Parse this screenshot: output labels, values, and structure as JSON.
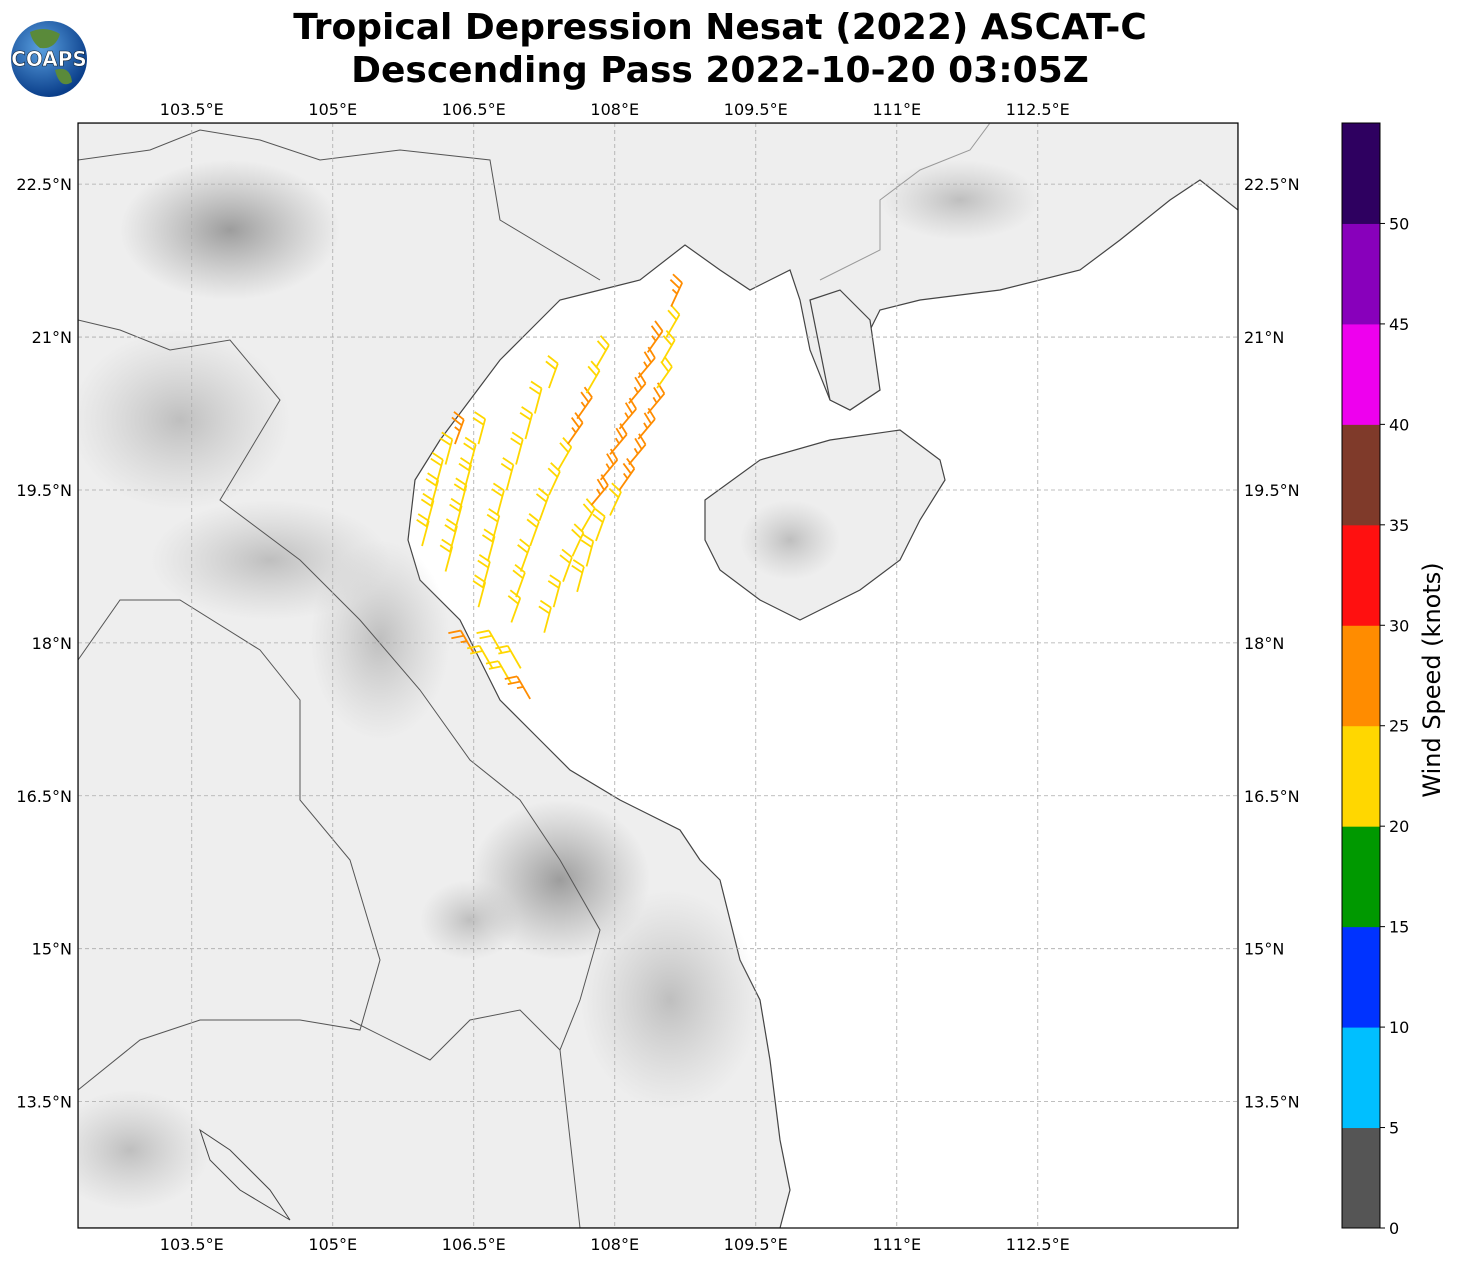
{
  "title_line1": "Tropical Depression Nesat (2022) ASCAT-C",
  "title_line2": "Descending Pass 2022-10-20 03:05Z",
  "logo_text": "COAPS",
  "map": {
    "lon_range": [
      102.29,
      114.63
    ],
    "lat_range": [
      12.26,
      23.1
    ],
    "lon_ticks": [
      103.5,
      105,
      106.5,
      108,
      109.5,
      111,
      112.5
    ],
    "lon_tick_labels": [
      "103.5°E",
      "105°E",
      "106.5°E",
      "108°E",
      "109.5°E",
      "111°E",
      "112.5°E"
    ],
    "lat_ticks": [
      22.5,
      21,
      19.5,
      18,
      16.5,
      15,
      13.5
    ],
    "lat_tick_labels": [
      "22.5°N",
      "21°N",
      "19.5°N",
      "18°N",
      "16.5°N",
      "15°N",
      "13.5°N"
    ],
    "gridlines": true
  },
  "colorbar": {
    "label": "Wind Speed (knots)",
    "bounds": [
      0,
      5,
      10,
      15,
      20,
      25,
      30,
      35,
      40,
      45,
      50,
      55
    ],
    "colors": [
      "#555555",
      "#00bfff",
      "#0033ff",
      "#009900",
      "#ffd700",
      "#ff8c00",
      "#ff1010",
      "#7f3a2a",
      "#ee00ee",
      "#8800bb",
      "#2e0060"
    ],
    "tick_labels": [
      "0",
      "5",
      "10",
      "15",
      "20",
      "25",
      "30",
      "35",
      "40",
      "45",
      "50"
    ]
  },
  "chart_data": {
    "type": "wind-barbs",
    "fields": [
      "lon",
      "lat",
      "speed_kt",
      "direction_from_deg"
    ],
    "barbs": [
      [
        105.95,
        18.95,
        22,
        15
      ],
      [
        106.0,
        19.15,
        22,
        15
      ],
      [
        106.05,
        19.35,
        22,
        15
      ],
      [
        106.1,
        19.55,
        22,
        15
      ],
      [
        106.2,
        19.75,
        22,
        15
      ],
      [
        106.3,
        19.95,
        27,
        20
      ],
      [
        106.2,
        18.7,
        22,
        15
      ],
      [
        106.25,
        18.9,
        22,
        15
      ],
      [
        106.3,
        19.1,
        22,
        15
      ],
      [
        106.35,
        19.3,
        22,
        15
      ],
      [
        106.4,
        19.5,
        22,
        15
      ],
      [
        106.45,
        19.7,
        22,
        15
      ],
      [
        106.55,
        19.95,
        22,
        15
      ],
      [
        106.55,
        18.35,
        22,
        15
      ],
      [
        106.6,
        18.55,
        22,
        15
      ],
      [
        106.65,
        18.8,
        22,
        15
      ],
      [
        106.7,
        19.0,
        22,
        15
      ],
      [
        106.75,
        19.25,
        22,
        15
      ],
      [
        106.85,
        19.5,
        22,
        15
      ],
      [
        106.95,
        19.75,
        22,
        15
      ],
      [
        107.05,
        20.0,
        22,
        15
      ],
      [
        107.15,
        20.25,
        22,
        15
      ],
      [
        107.3,
        20.5,
        22,
        20
      ],
      [
        106.9,
        18.2,
        22,
        20
      ],
      [
        106.95,
        18.45,
        22,
        20
      ],
      [
        107.0,
        18.7,
        22,
        20
      ],
      [
        107.1,
        18.95,
        22,
        20
      ],
      [
        107.2,
        19.2,
        22,
        20
      ],
      [
        107.3,
        19.45,
        22,
        25
      ],
      [
        107.4,
        19.7,
        22,
        30
      ],
      [
        107.5,
        19.95,
        26,
        35
      ],
      [
        107.6,
        20.2,
        26,
        35
      ],
      [
        107.7,
        20.45,
        22,
        30
      ],
      [
        107.8,
        20.7,
        22,
        30
      ],
      [
        107.25,
        18.1,
        22,
        15
      ],
      [
        107.35,
        18.35,
        22,
        15
      ],
      [
        107.45,
        18.6,
        22,
        20
      ],
      [
        107.55,
        18.85,
        22,
        25
      ],
      [
        107.65,
        19.1,
        22,
        30
      ],
      [
        107.75,
        19.35,
        26,
        40
      ],
      [
        107.85,
        19.6,
        26,
        40
      ],
      [
        107.95,
        19.85,
        26,
        40
      ],
      [
        108.05,
        20.1,
        26,
        40
      ],
      [
        108.15,
        20.35,
        26,
        40
      ],
      [
        108.25,
        20.6,
        26,
        40
      ],
      [
        108.35,
        20.85,
        26,
        35
      ],
      [
        107.6,
        18.5,
        22,
        15
      ],
      [
        107.7,
        18.75,
        22,
        15
      ],
      [
        107.8,
        19.0,
        22,
        20
      ],
      [
        107.95,
        19.25,
        22,
        25
      ],
      [
        108.05,
        19.5,
        26,
        35
      ],
      [
        108.15,
        19.75,
        26,
        40
      ],
      [
        108.25,
        20.0,
        26,
        40
      ],
      [
        108.35,
        20.25,
        26,
        40
      ],
      [
        108.45,
        20.5,
        22,
        35
      ],
      [
        108.5,
        20.75,
        22,
        30
      ],
      [
        108.55,
        21.0,
        22,
        30
      ],
      [
        108.6,
        21.3,
        27,
        25
      ],
      [
        106.5,
        17.9,
        27,
        330
      ],
      [
        106.7,
        17.75,
        22,
        330
      ],
      [
        106.9,
        17.6,
        22,
        330
      ],
      [
        107.1,
        17.45,
        27,
        330
      ],
      [
        106.8,
        17.9,
        22,
        330
      ],
      [
        107.0,
        17.75,
        22,
        330
      ]
    ]
  }
}
